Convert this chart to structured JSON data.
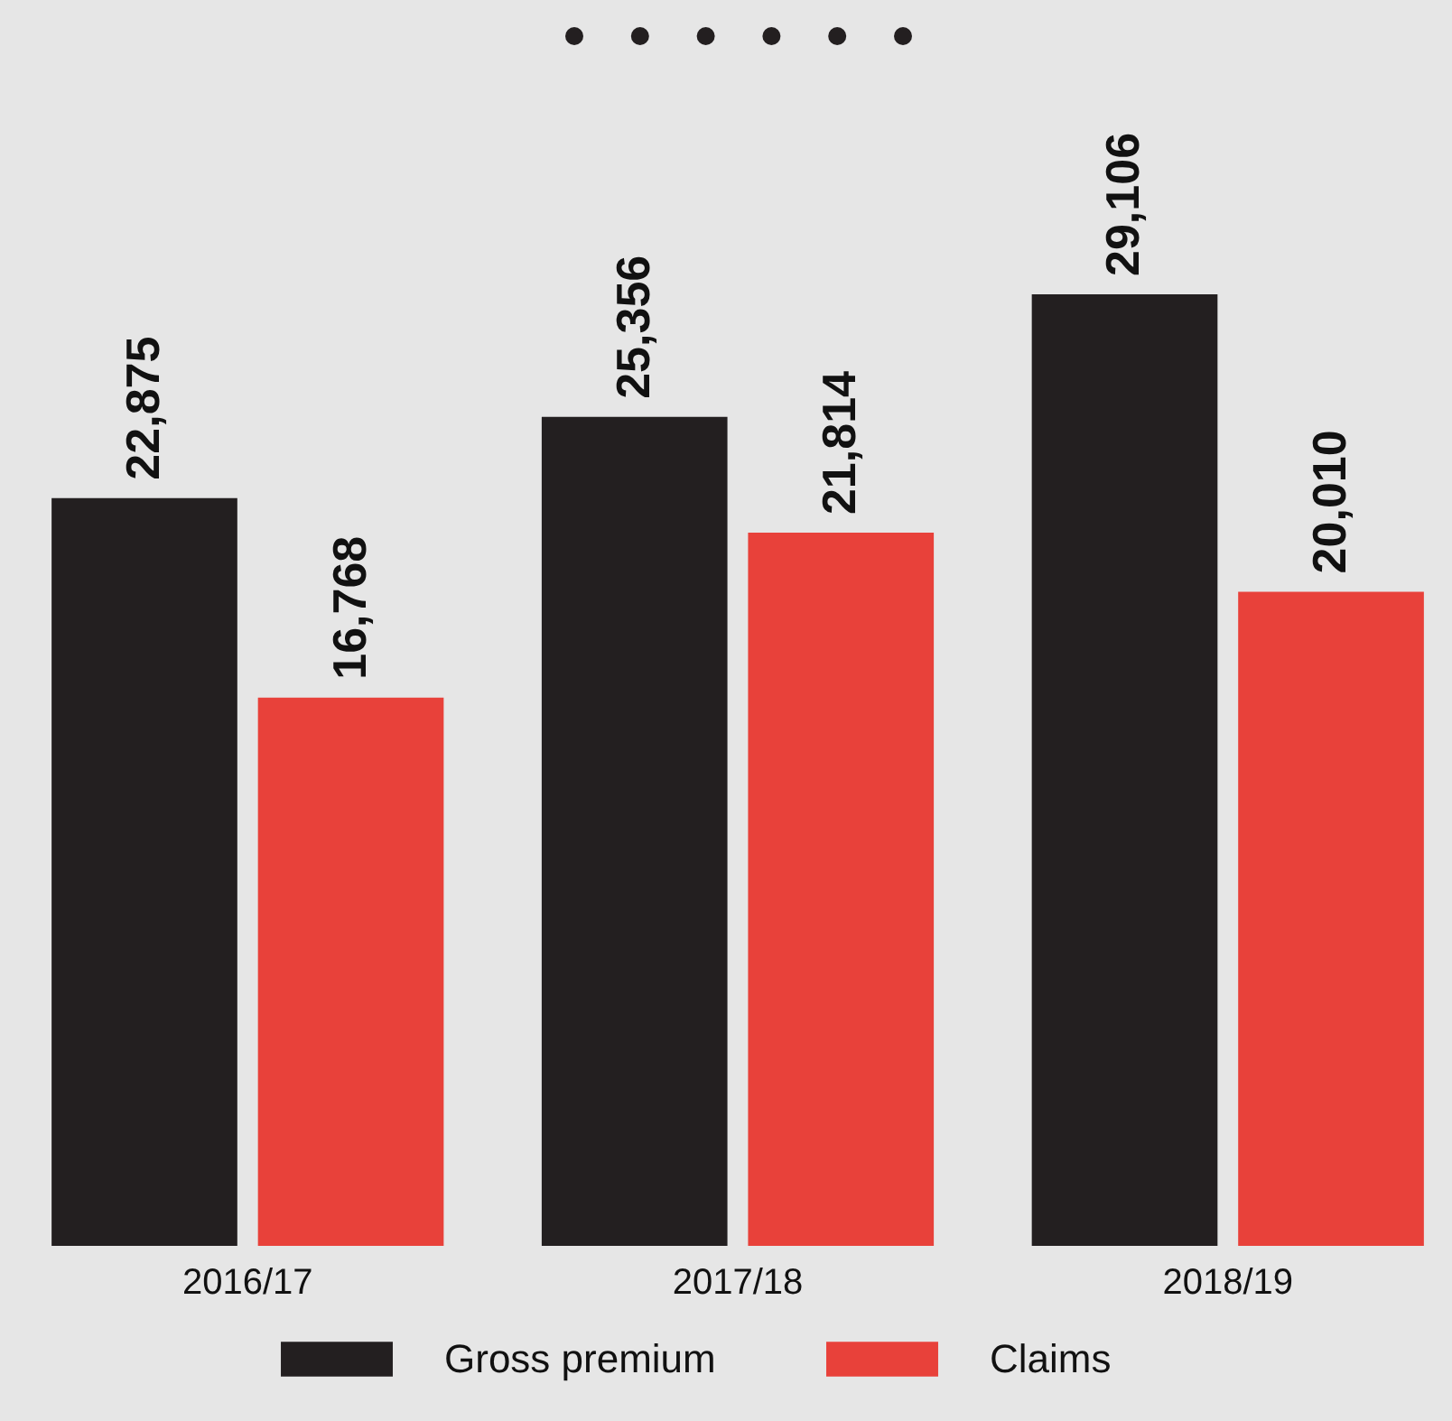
{
  "chart_data": {
    "type": "bar",
    "categories": [
      "2016/17",
      "2017/18",
      "2018/19"
    ],
    "series": [
      {
        "name": "Gross premium",
        "color": "#231f20",
        "values": [
          22875,
          25356,
          29106
        ],
        "value_labels": [
          "22,875",
          "25,356",
          "29,106"
        ]
      },
      {
        "name": "Claims",
        "color": "#e8413a",
        "values": [
          16768,
          21814,
          20010
        ],
        "value_labels": [
          "16,768",
          "21,814",
          "20,010"
        ]
      }
    ],
    "legend": "bottom"
  }
}
